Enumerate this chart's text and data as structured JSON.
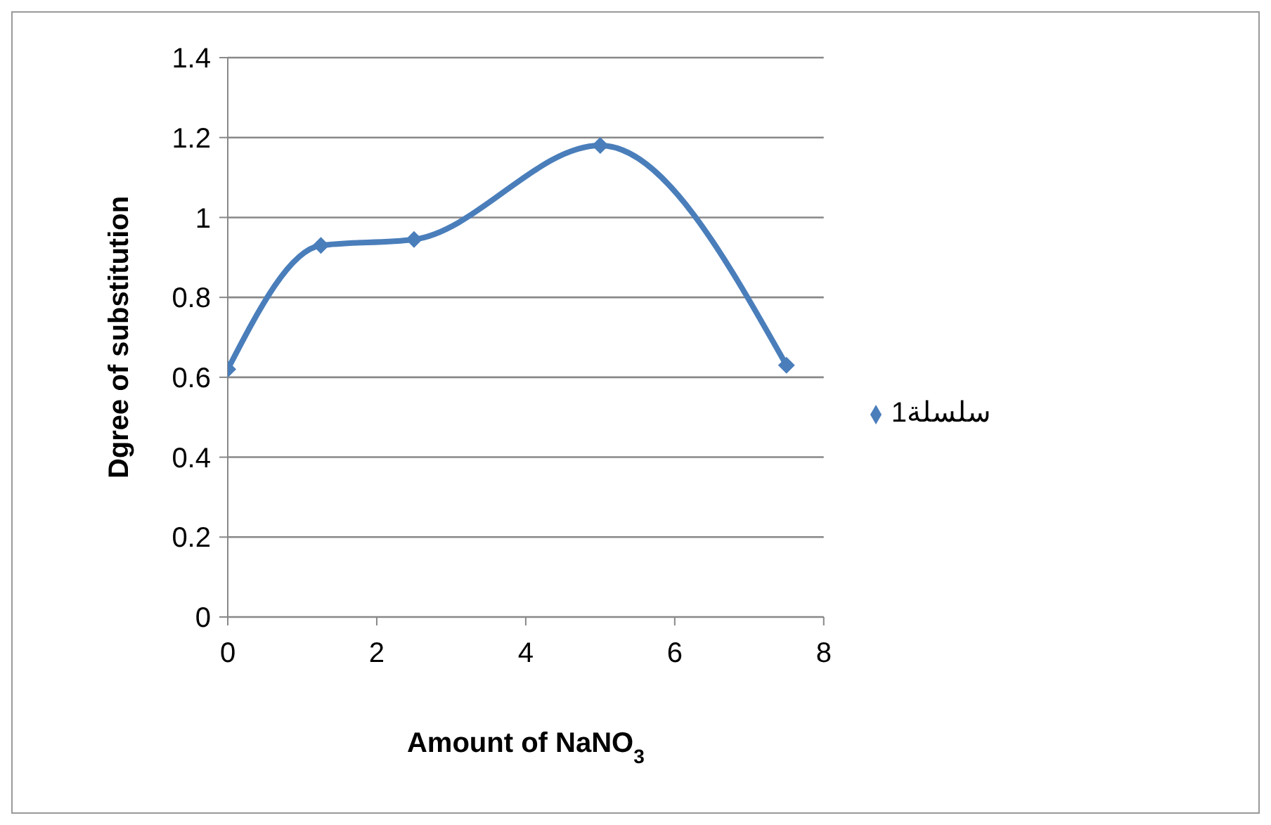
{
  "chart_data": {
    "type": "line",
    "xlabel": "Amount of NaNO$_{3}$",
    "ylabel": "Dgree of substitution",
    "x": [
      0,
      1.25,
      2.5,
      5,
      7.5
    ],
    "series": [
      {
        "name": "سلسلة1",
        "color": "#4a7ebb",
        "values": [
          0.62,
          0.93,
          0.945,
          1.18,
          0.63
        ]
      }
    ],
    "xlim": [
      0,
      8
    ],
    "xticks": [
      0,
      2,
      4,
      6,
      8
    ],
    "ylim": [
      0,
      1.4
    ],
    "yticks": [
      0,
      0.2,
      0.4,
      0.6,
      0.8,
      1,
      1.2,
      1.4
    ],
    "grid": "y",
    "legend": "right",
    "marker": "diamond",
    "line_style": "solid"
  }
}
